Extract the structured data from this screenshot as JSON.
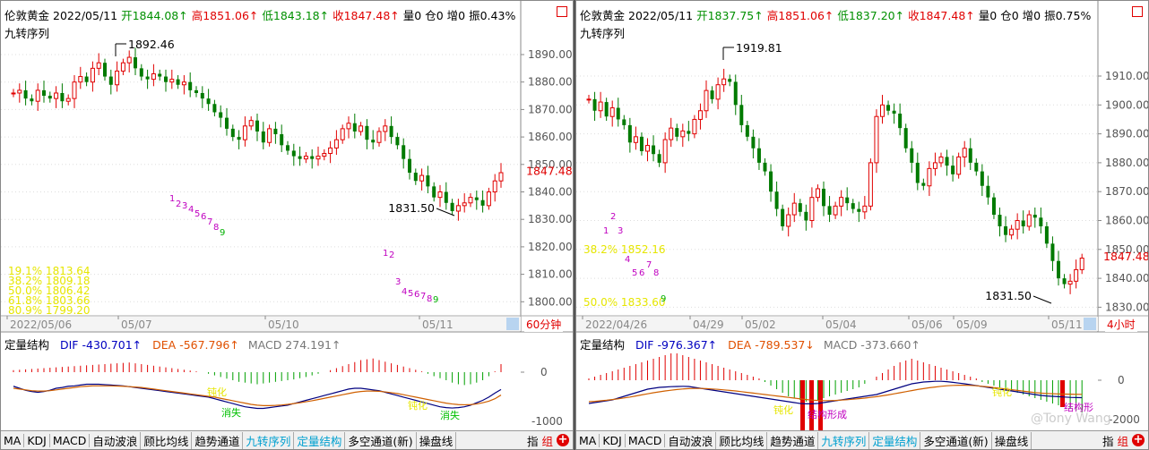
{
  "left": {
    "header": {
      "name": "伦敦黄金",
      "date": "2022/05/11",
      "open": "开1844.08↑",
      "high": "高1851.06↑",
      "low": "低1843.18↑",
      "close": "收1847.48↑",
      "vol": "量0",
      "oi": "仓0",
      "inc": "增0",
      "amp": "振0.43%"
    },
    "subtitle": "九转序列",
    "price_labels": [
      "1890.00",
      "1880.00",
      "1870.00",
      "1860.00",
      "1850.00",
      "1840.00",
      "1830.00",
      "1820.00",
      "1810.00",
      "1800.00"
    ],
    "last_price": "1847.48",
    "hi_label": "1892.46",
    "lo_label": "1831.50",
    "fib": [
      "19.1% 1813.64",
      "38.2% 1809.18",
      "50.0% 1806.42",
      "61.8% 1803.66",
      "80.9% 1799.20"
    ],
    "dates": [
      "2022/05/06",
      "05/07",
      "05/10",
      "05/11"
    ],
    "timeframe": "60分钟",
    "ind": {
      "name": "定量结构",
      "dif": "DIF -430.701↑",
      "dea": "DEA -567.796↑",
      "macd": "MACD 274.191↑"
    },
    "ind_scale": [
      "0",
      "-1000"
    ],
    "ind_marks": [
      "钝化",
      "消失",
      "钝化",
      "消失"
    ],
    "seq1": [
      "1",
      "2",
      "3",
      "4",
      "5",
      "6",
      "7",
      "8",
      "9"
    ],
    "seq2": [
      "1",
      "2",
      "3",
      "4",
      "5",
      "6",
      "7",
      "8",
      "9"
    ]
  },
  "right": {
    "header": {
      "name": "伦敦黄金",
      "date": "2022/05/11",
      "open": "开1837.75↑",
      "high": "高1851.06↑",
      "low": "低1837.20↑",
      "close": "收1847.48↑",
      "vol": "量0",
      "oi": "仓0",
      "inc": "增0",
      "amp": "振0.75%"
    },
    "subtitle": "九转序列",
    "price_labels": [
      "1910.00",
      "1900.00",
      "1890.00",
      "1880.00",
      "1870.00",
      "1860.00",
      "1850.00",
      "1840.00",
      "1830.00"
    ],
    "last_price": "1847.48",
    "hi_label": "1919.81",
    "lo_label": "1831.50",
    "fib": [
      "38.2% 1852.16",
      "50.0% 1833.60"
    ],
    "dates": [
      "2022/04/26",
      "04/29",
      "05/02",
      "05/04",
      "05/06",
      "05/09",
      "05/11"
    ],
    "timeframe": "4小时",
    "ind": {
      "name": "定量结构",
      "dif": "DIF -976.367↑",
      "dea": "DEA -789.537↓",
      "macd": "MACD -373.660↑"
    },
    "ind_scale": [
      "0",
      "-2000"
    ],
    "ind_marks": [
      "钝化",
      "结构形成",
      "钝化",
      "结构形"
    ],
    "seq1": [
      "1",
      "2",
      "3",
      "4",
      "5",
      "6",
      "7",
      "8",
      "9"
    ]
  },
  "tabs": [
    "MA",
    "KDJ",
    "MACD",
    "自动波浪",
    "顾比均线",
    "趋势通道",
    "九转序列",
    "定量结构",
    "多空通道(新)",
    "操盘线"
  ],
  "tabs_right": [
    "指",
    "组"
  ],
  "watermark": "@Tony Wang",
  "colors": {
    "up": "#e00000",
    "down": "#007a00",
    "fib": "#e6e600",
    "seq": "#c000c0",
    "seq9": "#00b000"
  }
}
